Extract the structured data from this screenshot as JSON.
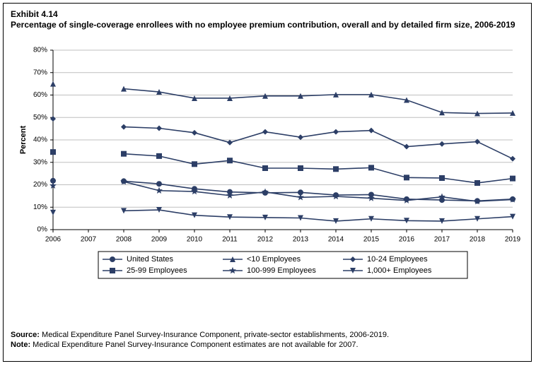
{
  "header": {
    "exhibit": "Exhibit 4.14",
    "title": "Percentage of single-coverage enrollees with no employee premium contribution, overall and by detailed firm size, 2006-2019"
  },
  "chart": {
    "type": "line",
    "ylabel": "Percent",
    "ylim": [
      0,
      80
    ],
    "ytick_step": 10,
    "ytick_suffix": "%",
    "years": [
      2006,
      2007,
      2008,
      2009,
      2010,
      2011,
      2012,
      2013,
      2014,
      2015,
      2016,
      2017,
      2018,
      2019
    ],
    "line_color": "#2c3e66",
    "line_width": 1.6,
    "marker_size": 4,
    "grid_color": "#bfbfbf",
    "axis_color": "#000000",
    "background": "#ffffff",
    "series": [
      {
        "name": "United States",
        "marker": "circle",
        "values": [
          21.8,
          null,
          21.6,
          20.4,
          18.2,
          16.8,
          16.4,
          16.6,
          15.4,
          15.6,
          13.6,
          13.2,
          12.8,
          13.6
        ]
      },
      {
        "name": "<10 Employees",
        "marker": "triangle-up",
        "values": [
          65.0,
          null,
          62.8,
          61.4,
          58.6,
          58.6,
          59.6,
          59.6,
          60.2,
          60.2,
          57.8,
          52.2,
          51.8,
          52.0
        ]
      },
      {
        "name": "10-24 Employees",
        "marker": "diamond",
        "values": [
          49.4,
          null,
          45.8,
          45.2,
          43.2,
          38.8,
          43.6,
          41.2,
          43.6,
          44.2,
          37.0,
          38.2,
          39.2,
          31.6
        ]
      },
      {
        "name": "25-99 Employees",
        "marker": "square",
        "values": [
          34.6,
          null,
          33.8,
          32.8,
          29.2,
          30.8,
          27.4,
          27.4,
          27.0,
          27.6,
          23.2,
          23.0,
          20.8,
          22.8
        ]
      },
      {
        "name": "100-999 Employees",
        "marker": "star",
        "values": [
          19.6,
          null,
          21.4,
          17.4,
          17.0,
          15.2,
          16.8,
          14.4,
          14.8,
          14.0,
          13.0,
          14.6,
          12.6,
          13.4
        ]
      },
      {
        "name": "1,000+ Employees",
        "marker": "triangle-down",
        "values": [
          7.6,
          null,
          8.4,
          8.8,
          6.4,
          5.6,
          5.4,
          5.2,
          3.8,
          4.8,
          4.0,
          3.8,
          4.8,
          5.8
        ]
      }
    ]
  },
  "footer": {
    "source_label": "Source:",
    "source_text": " Medical Expenditure Panel Survey-Insurance Component, private-sector establishments, 2006-2019.",
    "note_label": "Note:",
    "note_text": " Medical Expenditure Panel Survey-Insurance Component estimates are not available for 2007."
  }
}
